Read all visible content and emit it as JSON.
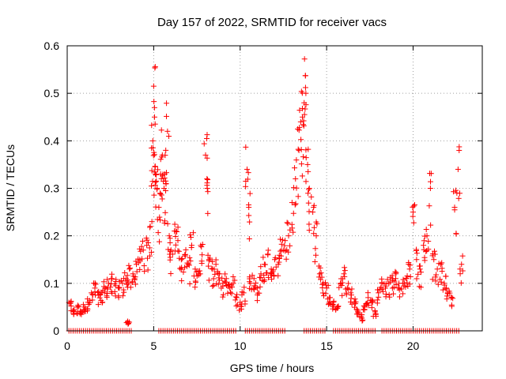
{
  "chart_data": {
    "type": "scatter",
    "title": "Day 157 of 2022, SRMTID for receiver vacs",
    "xlabel": "GPS time / hours",
    "ylabel": "SRMTID / TECUs",
    "xlim": [
      0,
      24
    ],
    "ylim": [
      0,
      0.6
    ],
    "xticks": [
      0,
      5,
      10,
      15,
      20
    ],
    "xtick_labels": [
      "0",
      "5",
      "10",
      "15",
      "20"
    ],
    "yticks": [
      0,
      0.1,
      0.2,
      0.3,
      0.4,
      0.5,
      0.6
    ],
    "ytick_labels": [
      "0",
      "0.1",
      "0.2",
      "0.3",
      "0.4",
      "0.5",
      "0.6"
    ],
    "grid": true,
    "marker": "+",
    "marker_color": "#ff0000",
    "data_range_hours": [
      0.1,
      22.8
    ],
    "zero_value_segments": [
      [
        0.1,
        3.8
      ],
      [
        5.3,
        9.8
      ],
      [
        10.3,
        12.6
      ],
      [
        13.7,
        14.9
      ],
      [
        15.4,
        17.9
      ],
      [
        18.2,
        22.7
      ]
    ],
    "series": [
      {
        "name": "SRMTID",
        "x": [
          0.2,
          0.4,
          0.6,
          0.8,
          1.0,
          1.2,
          1.4,
          1.6,
          1.8,
          2.0,
          2.2,
          2.4,
          2.6,
          2.8,
          3.0,
          3.2,
          3.4,
          3.5,
          3.6,
          3.8,
          4.0,
          4.2,
          4.4,
          4.6,
          4.8,
          4.95,
          5.0,
          5.05,
          5.1,
          5.2,
          5.3,
          5.4,
          5.5,
          5.6,
          5.7,
          5.8,
          5.9,
          6.0,
          6.2,
          6.4,
          6.6,
          6.8,
          7.0,
          7.2,
          7.4,
          7.6,
          7.8,
          8.0,
          8.1,
          8.2,
          8.4,
          8.6,
          8.8,
          9.0,
          9.2,
          9.4,
          9.6,
          9.8,
          10.0,
          10.2,
          10.4,
          10.5,
          10.6,
          10.8,
          11.0,
          11.2,
          11.4,
          11.6,
          11.8,
          12.0,
          12.2,
          12.4,
          12.6,
          12.8,
          13.0,
          13.2,
          13.4,
          13.5,
          13.6,
          13.7,
          13.8,
          13.9,
          14.0,
          14.2,
          14.4,
          14.6,
          14.8,
          15.0,
          15.2,
          15.4,
          15.6,
          15.8,
          16.0,
          16.2,
          16.4,
          16.6,
          16.8,
          17.0,
          17.2,
          17.4,
          17.6,
          17.8,
          18.0,
          18.2,
          18.4,
          18.6,
          18.8,
          19.0,
          19.2,
          19.4,
          19.6,
          19.8,
          20.0,
          20.2,
          20.4,
          20.6,
          20.8,
          21.0,
          21.2,
          21.4,
          21.6,
          21.8,
          22.0,
          22.2,
          22.4,
          22.6,
          22.8
        ],
        "y": [
          0.06,
          0.045,
          0.05,
          0.04,
          0.05,
          0.06,
          0.08,
          0.09,
          0.075,
          0.08,
          0.09,
          0.1,
          0.11,
          0.095,
          0.09,
          0.1,
          0.11,
          0.02,
          0.13,
          0.12,
          0.14,
          0.15,
          0.17,
          0.18,
          0.22,
          0.4,
          0.515,
          0.45,
          0.33,
          0.3,
          0.26,
          0.33,
          0.37,
          0.3,
          0.38,
          0.42,
          0.2,
          0.17,
          0.21,
          0.19,
          0.15,
          0.16,
          0.14,
          0.18,
          0.13,
          0.12,
          0.16,
          0.37,
          0.3,
          0.15,
          0.13,
          0.14,
          0.12,
          0.1,
          0.11,
          0.09,
          0.1,
          0.07,
          0.06,
          0.08,
          0.34,
          0.26,
          0.1,
          0.11,
          0.09,
          0.12,
          0.14,
          0.16,
          0.13,
          0.15,
          0.14,
          0.17,
          0.19,
          0.2,
          0.27,
          0.32,
          0.38,
          0.44,
          0.45,
          0.48,
          0.5,
          0.35,
          0.3,
          0.25,
          0.2,
          0.12,
          0.1,
          0.09,
          0.07,
          0.06,
          0.05,
          0.1,
          0.12,
          0.09,
          0.08,
          0.06,
          0.04,
          0.03,
          0.05,
          0.07,
          0.06,
          0.04,
          0.08,
          0.1,
          0.09,
          0.1,
          0.11,
          0.12,
          0.09,
          0.1,
          0.11,
          0.13,
          0.25,
          0.15,
          0.13,
          0.18,
          0.2,
          0.3,
          0.15,
          0.13,
          0.14,
          0.1,
          0.08,
          0.07,
          0.26,
          0.34,
          0.14
        ]
      }
    ]
  }
}
